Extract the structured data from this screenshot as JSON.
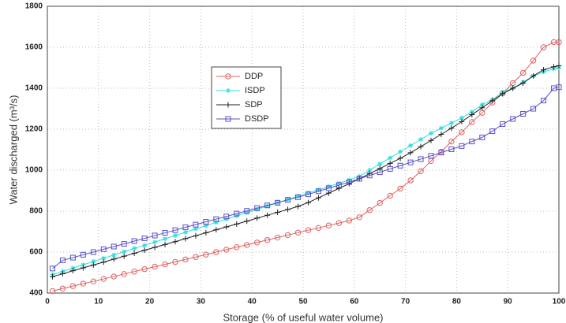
{
  "chart_data": {
    "type": "line",
    "xlabel": "Storage (% of useful water volume)",
    "ylabel": "Water discharged (m³/s)",
    "x": [
      1,
      3,
      5,
      7,
      9,
      11,
      13,
      15,
      17,
      19,
      21,
      23,
      25,
      27,
      29,
      31,
      33,
      35,
      37,
      39,
      41,
      43,
      45,
      47,
      49,
      51,
      53,
      55,
      57,
      59,
      61,
      63,
      65,
      67,
      69,
      71,
      73,
      75,
      77,
      79,
      81,
      83,
      85,
      87,
      89,
      91,
      93,
      95,
      97,
      99,
      100
    ],
    "series": [
      {
        "name": "DDP",
        "color": "#e06060",
        "marker": "circle",
        "values": [
          410,
          422,
          434,
          446,
          457,
          469,
          481,
          493,
          505,
          517,
          529,
          540,
          552,
          564,
          576,
          588,
          600,
          612,
          624,
          635,
          647,
          659,
          671,
          683,
          695,
          707,
          718,
          730,
          742,
          754,
          770,
          805,
          840,
          875,
          910,
          950,
          995,
          1045,
          1090,
          1140,
          1185,
          1235,
          1280,
          1330,
          1375,
          1425,
          1475,
          1535,
          1600,
          1625,
          1625
        ]
      },
      {
        "name": "ISDP",
        "color": "#30dede",
        "marker": "star",
        "values": [
          490,
          506,
          522,
          538,
          554,
          570,
          586,
          602,
          618,
          633,
          649,
          665,
          681,
          697,
          713,
          729,
          745,
          761,
          777,
          793,
          809,
          825,
          841,
          857,
          873,
          889,
          904,
          920,
          936,
          952,
          970,
          1000,
          1030,
          1060,
          1090,
          1120,
          1150,
          1180,
          1205,
          1230,
          1255,
          1285,
          1320,
          1345,
          1380,
          1400,
          1430,
          1460,
          1480,
          1495,
          1500
        ]
      },
      {
        "name": "SDP",
        "color": "#222222",
        "marker": "plus",
        "values": [
          480,
          494,
          509,
          523,
          537,
          551,
          566,
          580,
          594,
          609,
          623,
          637,
          651,
          666,
          680,
          694,
          709,
          723,
          737,
          751,
          766,
          780,
          794,
          808,
          823,
          842,
          865,
          888,
          911,
          934,
          958,
          983,
          1008,
          1033,
          1058,
          1085,
          1115,
          1145,
          1175,
          1205,
          1237,
          1271,
          1305,
          1339,
          1373,
          1400,
          1425,
          1460,
          1490,
          1505,
          1510
        ]
      },
      {
        "name": "DSDP",
        "color": "#5a50c8",
        "marker": "square",
        "values": [
          520,
          560,
          573,
          587,
          600,
          614,
          627,
          640,
          654,
          667,
          681,
          694,
          707,
          721,
          734,
          748,
          761,
          774,
          788,
          801,
          815,
          828,
          841,
          855,
          868,
          882,
          897,
          912,
          927,
          942,
          958,
          974,
          990,
          1006,
          1022,
          1038,
          1054,
          1070,
          1086,
          1102,
          1118,
          1140,
          1160,
          1190,
          1225,
          1250,
          1275,
          1300,
          1340,
          1400,
          1405
        ]
      }
    ],
    "xlim": [
      0,
      100
    ],
    "xticks": [
      0,
      10,
      20,
      30,
      40,
      50,
      60,
      70,
      80,
      90,
      100
    ],
    "ylim": [
      400,
      1800
    ],
    "yticks": [
      400,
      600,
      800,
      1000,
      1200,
      1400,
      1600,
      1800
    ],
    "grid": true,
    "legend": "upper-center"
  }
}
